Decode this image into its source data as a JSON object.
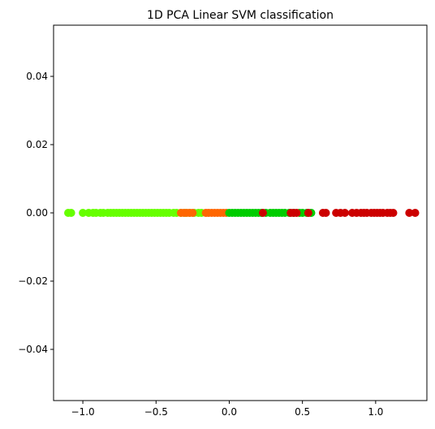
{
  "chart_data": {
    "type": "scatter",
    "title": "1D PCA Linear SVM classification",
    "xlabel": "",
    "ylabel": "",
    "xlim": [
      -1.2,
      1.35
    ],
    "ylim": [
      -0.055,
      0.055
    ],
    "x_ticks": [
      -1.0,
      -0.5,
      0.0,
      0.5,
      1.0
    ],
    "x_tick_labels": [
      "−1.0",
      "−0.5",
      "0.0",
      "0.5",
      "1.0"
    ],
    "y_ticks": [
      0.04,
      0.02,
      0.0,
      -0.02,
      -0.04
    ],
    "y_tick_labels": [
      "0.04",
      "0.02",
      "0.00",
      "−0.02",
      "−0.04"
    ],
    "grid": false,
    "legend": "none",
    "series": [
      {
        "color": "#66ff00",
        "x": [
          -1.1,
          -1.08,
          -1.0,
          -0.96,
          -0.93,
          -0.91,
          -0.88,
          -0.86,
          -0.83,
          -0.81,
          -0.79,
          -0.77,
          -0.75,
          -0.73,
          -0.71,
          -0.69,
          -0.67,
          -0.65,
          -0.63,
          -0.61,
          -0.59,
          -0.57,
          -0.55,
          -0.53,
          -0.51,
          -0.49,
          -0.47,
          -0.45,
          -0.43,
          -0.41,
          -0.38,
          -0.36,
          -0.33,
          -0.3,
          -0.27,
          -0.24,
          -0.21,
          -0.19
        ],
        "y": [
          0,
          0,
          0,
          0,
          0,
          0,
          0,
          0,
          0,
          0,
          0,
          0,
          0,
          0,
          0,
          0,
          0,
          0,
          0,
          0,
          0,
          0,
          0,
          0,
          0,
          0,
          0,
          0,
          0,
          0,
          0,
          0,
          0,
          0,
          0,
          0,
          0,
          0
        ]
      },
      {
        "color": "#ff6600",
        "x": [
          -0.33,
          -0.31,
          -0.29,
          -0.27,
          -0.25,
          -0.16,
          -0.14,
          -0.12,
          -0.1,
          -0.08,
          -0.06,
          -0.04,
          -0.02
        ],
        "y": [
          0,
          0,
          0,
          0,
          0,
          0,
          0,
          0,
          0,
          0,
          0,
          0,
          0
        ]
      },
      {
        "color": "#00cc00",
        "x": [
          0.0,
          0.02,
          0.04,
          0.06,
          0.08,
          0.1,
          0.12,
          0.14,
          0.16,
          0.18,
          0.2,
          0.22,
          0.25,
          0.28,
          0.3,
          0.32,
          0.34,
          0.36,
          0.38,
          0.41,
          0.44,
          0.48,
          0.5,
          0.53,
          0.56
        ],
        "y": [
          0,
          0,
          0,
          0,
          0,
          0,
          0,
          0,
          0,
          0,
          0,
          0,
          0,
          0,
          0,
          0,
          0,
          0,
          0,
          0,
          0,
          0,
          0,
          0,
          0
        ]
      },
      {
        "color": "#cc0000",
        "x": [
          0.23,
          0.42,
          0.44,
          0.46,
          0.54,
          0.64,
          0.66,
          0.73,
          0.76,
          0.79,
          0.84,
          0.87,
          0.9,
          0.92,
          0.94,
          0.97,
          0.99,
          1.01,
          1.03,
          1.05,
          1.08,
          1.1,
          1.12,
          1.23,
          1.27
        ],
        "y": [
          0,
          0,
          0,
          0,
          0,
          0,
          0,
          0,
          0,
          0,
          0,
          0,
          0,
          0,
          0,
          0,
          0,
          0,
          0,
          0,
          0,
          0,
          0,
          0,
          0
        ]
      }
    ]
  }
}
